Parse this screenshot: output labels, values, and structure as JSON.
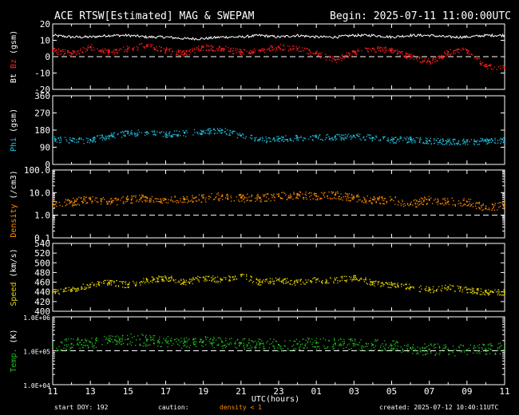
{
  "header": {
    "title": "ACE RTSW[Estimated] MAG & SWEPAM",
    "begin": "Begin: 2025-07-11 11:00:00UTC"
  },
  "footer": {
    "start_doy": "start DOY: 192",
    "caution": "caution:",
    "density_note": "density < 1",
    "created": "created: 2025-07-12 10:40:11UTC"
  },
  "chart_data": {
    "type": "scatter",
    "xlabel": "UTC(hours)",
    "x_ticks": [
      "11",
      "13",
      "15",
      "17",
      "19",
      "21",
      "23",
      "01",
      "03",
      "05",
      "07",
      "09",
      "11"
    ],
    "x_range_hours": [
      0,
      24
    ],
    "panels": [
      {
        "id": "bt-bz",
        "ylabel_parts": [
          {
            "text": "Bt",
            "color": "#ffffff"
          },
          {
            "text": "Bz",
            "color": "#ff2020"
          },
          {
            "text": "(gsm)",
            "color": "#ffffff"
          }
        ],
        "scale": "linear",
        "ylim": [
          -20,
          20
        ],
        "yticks": [
          "-20",
          "-10",
          "0",
          "10",
          "20"
        ],
        "tick_values": [
          -20,
          -10,
          0,
          10,
          20
        ],
        "reference_line": 0,
        "series": [
          {
            "name": "Bt",
            "color": "#ffffff",
            "style": "line",
            "x": [
              0,
              1,
              2,
              3,
              4,
              5,
              6,
              7,
              8,
              9,
              10,
              11,
              12,
              13,
              14,
              15,
              16,
              17,
              18,
              19,
              20,
              21,
              22,
              23,
              24
            ],
            "y": [
              13,
              12,
              12,
              13,
              13,
              12,
              12,
              11,
              11,
              12,
              12,
              13,
              12,
              13,
              12,
              12,
              13,
              13,
              12,
              13,
              13,
              12,
              12,
              13,
              13
            ]
          },
          {
            "name": "Bz",
            "color": "#ff2020",
            "style": "points",
            "x": [
              0,
              1,
              2,
              3,
              4,
              5,
              6,
              7,
              8,
              9,
              10,
              11,
              12,
              13,
              14,
              15,
              16,
              17,
              18,
              19,
              20,
              21,
              22,
              23,
              24
            ],
            "y": [
              4,
              2,
              6,
              3,
              5,
              7,
              4,
              2,
              6,
              5,
              3,
              4,
              6,
              5,
              2,
              -2,
              3,
              5,
              4,
              0,
              -3,
              3,
              4,
              -6,
              -7
            ]
          }
        ]
      },
      {
        "id": "phi",
        "ylabel_parts": [
          {
            "text": "Phi",
            "color": "#20c0e0"
          },
          {
            "text": "(gsm)",
            "color": "#ffffff"
          }
        ],
        "scale": "linear",
        "ylim": [
          0,
          360
        ],
        "yticks": [
          "0",
          "90",
          "180",
          "270",
          "360"
        ],
        "tick_values": [
          0,
          90,
          180,
          270,
          360
        ],
        "series": [
          {
            "name": "Phi",
            "color": "#20c0e0",
            "style": "points",
            "x": [
              0,
              1,
              2,
              3,
              4,
              5,
              6,
              7,
              8,
              9,
              10,
              11,
              12,
              13,
              14,
              15,
              16,
              17,
              18,
              19,
              20,
              21,
              22,
              23,
              24
            ],
            "y": [
              135,
              125,
              130,
              150,
              165,
              170,
              160,
              165,
              175,
              180,
              150,
              130,
              135,
              140,
              145,
              145,
              150,
              140,
              130,
              130,
              125,
              120,
              120,
              125,
              130
            ]
          }
        ]
      },
      {
        "id": "density",
        "ylabel_parts": [
          {
            "text": "Density",
            "color": "#ff8c00"
          },
          {
            "text": "(/cm3)",
            "color": "#ffffff"
          }
        ],
        "scale": "log",
        "ylim": [
          0.1,
          100
        ],
        "yticks": [
          "0.1",
          "1.0",
          "10.0",
          "100.0"
        ],
        "tick_values": [
          0.1,
          1,
          10,
          100
        ],
        "reference_line": 1,
        "series": [
          {
            "name": "Density",
            "color": "#ff8c00",
            "style": "points",
            "x": [
              0,
              1,
              2,
              3,
              4,
              5,
              6,
              7,
              8,
              9,
              10,
              11,
              12,
              13,
              14,
              15,
              16,
              17,
              18,
              19,
              20,
              21,
              22,
              23,
              24
            ],
            "y": [
              3,
              4,
              5,
              4,
              5,
              6,
              5,
              5,
              6,
              7,
              6,
              6,
              7,
              8,
              7,
              8,
              6,
              5,
              5,
              3,
              5,
              4,
              4,
              2,
              3
            ]
          }
        ]
      },
      {
        "id": "speed",
        "ylabel_parts": [
          {
            "text": "Speed",
            "color": "#e0d000"
          },
          {
            "text": "(km/s)",
            "color": "#ffffff"
          }
        ],
        "scale": "linear",
        "ylim": [
          400,
          540
        ],
        "yticks": [
          "400",
          "420",
          "440",
          "460",
          "480",
          "500",
          "520",
          "540"
        ],
        "tick_values": [
          400,
          420,
          440,
          460,
          480,
          500,
          520,
          540
        ],
        "series": [
          {
            "name": "Speed",
            "color": "#e0d000",
            "style": "points",
            "x": [
              0,
              1,
              2,
              3,
              4,
              5,
              6,
              7,
              8,
              9,
              10,
              11,
              12,
              13,
              14,
              15,
              16,
              17,
              18,
              19,
              20,
              21,
              22,
              23,
              24
            ],
            "y": [
              440,
              445,
              455,
              460,
              455,
              465,
              470,
              460,
              470,
              465,
              475,
              460,
              465,
              460,
              465,
              465,
              470,
              460,
              455,
              450,
              445,
              450,
              445,
              440,
              440
            ]
          }
        ]
      },
      {
        "id": "temp",
        "ylabel_parts": [
          {
            "text": "Temp.",
            "color": "#20c020"
          },
          {
            "text": "(K)",
            "color": "#ffffff"
          }
        ],
        "scale": "log",
        "ylim": [
          10000,
          1000000
        ],
        "yticks": [
          "1.0E+04",
          "1.0E+05",
          "1.0E+06"
        ],
        "tick_values": [
          10000,
          100000,
          1000000
        ],
        "reference_line": 100000,
        "series": [
          {
            "name": "Temp",
            "color": "#20c020",
            "style": "points",
            "x": [
              0,
              1,
              2,
              3,
              4,
              5,
              6,
              7,
              8,
              9,
              10,
              11,
              12,
              13,
              14,
              15,
              16,
              17,
              18,
              19,
              20,
              21,
              22,
              23,
              24
            ],
            "y": [
              150000,
              160000,
              180000,
              200000,
              220000,
              210000,
              200000,
              180000,
              190000,
              180000,
              170000,
              160000,
              150000,
              160000,
              170000,
              165000,
              160000,
              150000,
              140000,
              120000,
              110000,
              110000,
              105000,
              110000,
              120000
            ]
          }
        ]
      }
    ]
  }
}
